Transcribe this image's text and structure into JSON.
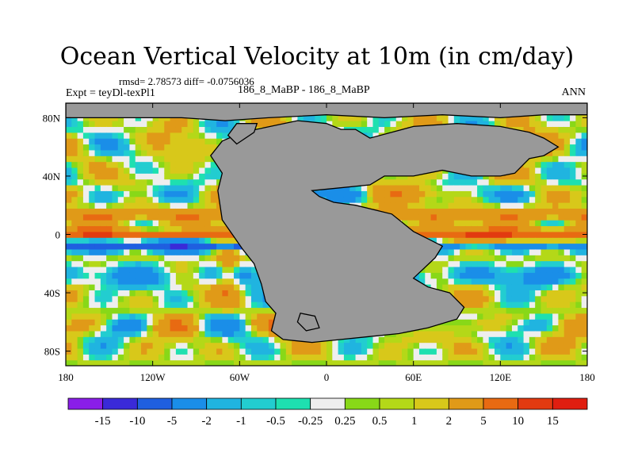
{
  "chart_data": {
    "type": "heatmap",
    "title": "Ocean Vertical Velocity at 10m (in cm/day)",
    "stats_text": "rmsd= 2.78573 diff= -0.0756036",
    "left_label": "Expt = teyDl-texPl1",
    "center_label": "186_8_MaBP - 186_8_MaBP",
    "right_label": "ANN",
    "x_ticks": [
      {
        "value": -180,
        "label": "180"
      },
      {
        "value": -120,
        "label": "120W"
      },
      {
        "value": -60,
        "label": "60W"
      },
      {
        "value": 0,
        "label": "0"
      },
      {
        "value": 60,
        "label": "60E"
      },
      {
        "value": 120,
        "label": "120E"
      },
      {
        "value": 180,
        "label": "180"
      }
    ],
    "y_ticks": [
      {
        "value": 80,
        "label": "80N"
      },
      {
        "value": 40,
        "label": "40N"
      },
      {
        "value": 0,
        "label": "0"
      },
      {
        "value": -40,
        "label": "40S"
      },
      {
        "value": -80,
        "label": "80S"
      }
    ],
    "xlim": [
      -180,
      180
    ],
    "ylim": [
      -90,
      90
    ],
    "land_color": "#999999",
    "colorbar": {
      "boundaries": [
        "-15",
        "-10",
        "-5",
        "-2",
        "-1",
        "-0.5",
        "-0.25",
        "0.25",
        "0.5",
        "1",
        "2",
        "5",
        "10",
        "15"
      ],
      "colors": [
        "#8a1ee8",
        "#3a2ad8",
        "#1f5fe0",
        "#1a8ee8",
        "#20b4e0",
        "#22cdd0",
        "#1ee0b0",
        "#eeeeee",
        "#88d818",
        "#b4d818",
        "#d8c81a",
        "#e09a18",
        "#e86a12",
        "#e23a10",
        "#e01e10"
      ]
    }
  }
}
